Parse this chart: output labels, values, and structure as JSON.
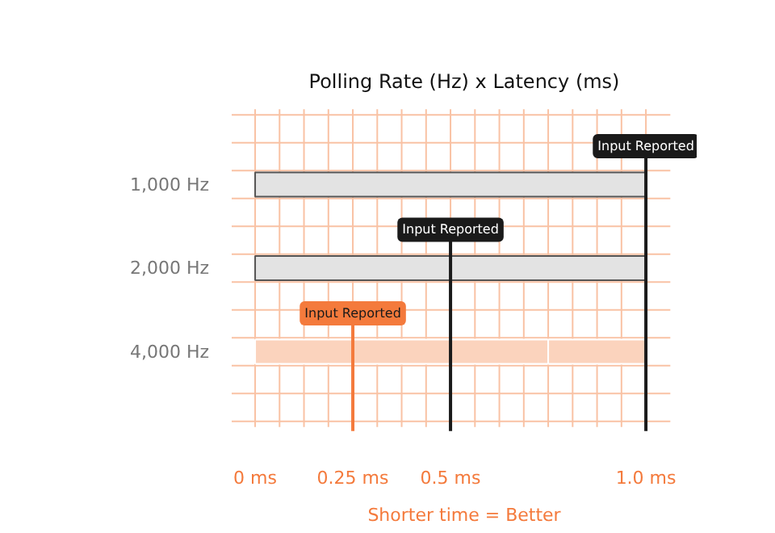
{
  "chart_data": {
    "type": "bar",
    "orientation": "horizontal",
    "stacked": true,
    "title": "Polling Rate (Hz) x Latency (ms)",
    "categories": [
      "1,000 Hz",
      "2,000 Hz",
      "4,000 Hz"
    ],
    "series": [
      {
        "colors": [
          "#e3e3e3",
          "#e3e3e3",
          "#fbd3bd"
        ],
        "values": [
          1.0,
          0.5,
          0.25
        ]
      },
      {
        "colors": [
          "#e3e3e3",
          "#e3e3e3",
          "#fbd3bd"
        ],
        "values": [
          null,
          0.5,
          0.25
        ]
      },
      {
        "colors": [
          "#e3e3e3",
          "#e3e3e3",
          "#fbd3bd"
        ],
        "values": [
          null,
          null,
          0.25
        ]
      },
      {
        "colors": [
          "#e3e3e3",
          "#e3e3e3",
          "#fbd3bd"
        ],
        "values": [
          null,
          null,
          0.25
        ]
      }
    ],
    "xlim": [
      -0.06,
      1.13
    ],
    "xticks": [
      {
        "value": 0,
        "label": "0 ms"
      },
      {
        "value": 0.0625,
        "label": null
      },
      {
        "value": 0.125,
        "label": null
      },
      {
        "value": 0.1875,
        "label": null
      },
      {
        "value": 0.25,
        "label": "0.25 ms"
      },
      {
        "value": 0.3125,
        "label": null
      },
      {
        "value": 0.375,
        "label": null
      },
      {
        "value": 0.4375,
        "label": null
      },
      {
        "value": 0.5,
        "label": "0.5 ms"
      },
      {
        "value": 0.5625,
        "label": null
      },
      {
        "value": 0.625,
        "label": null
      },
      {
        "value": 0.6875,
        "label": null
      },
      {
        "value": 0.75,
        "label": null
      },
      {
        "value": 0.8125,
        "label": null
      },
      {
        "value": 0.875,
        "label": null
      },
      {
        "value": 0.9375,
        "label": null
      },
      {
        "value": 1.0,
        "label": "1.0 ms"
      }
    ],
    "grid": true,
    "ref_lines": [
      {
        "axis": "x",
        "value": 1.0,
        "label": "Input Reported",
        "color": "#1a1a1a"
      },
      {
        "axis": "x",
        "value": 0.5,
        "label": "Input Reported",
        "color": "#1a1a1a"
      },
      {
        "axis": "x",
        "value": 0.25,
        "label": "Input Reported",
        "color": "#f47a3c"
      }
    ],
    "annotations": [
      "Shorter time = Better"
    ]
  }
}
